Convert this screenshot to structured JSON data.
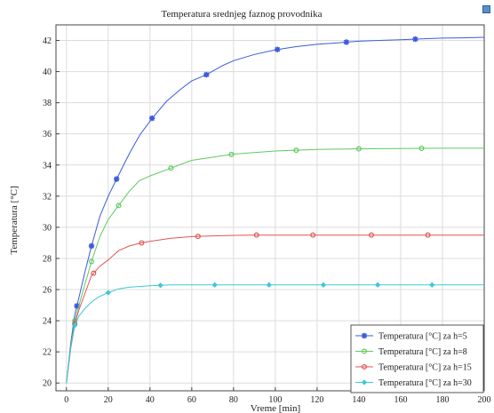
{
  "chart_data": {
    "type": "line",
    "title": "Temperatura srednjeg faznog provodnika",
    "xlabel": "Vreme [min]",
    "ylabel": "Temperatura [°C]",
    "xlim": [
      -5,
      200
    ],
    "ylim": [
      19.5,
      43
    ],
    "xticks": [
      0,
      20,
      40,
      60,
      80,
      100,
      120,
      140,
      160,
      180,
      200
    ],
    "yticks": [
      20,
      22,
      24,
      26,
      28,
      30,
      32,
      34,
      36,
      38,
      40,
      42
    ],
    "grid": true,
    "legend_position": "bottom-right",
    "series": [
      {
        "name": "Temperatura [°C] za h=5",
        "color": "#3b5bdb",
        "marker": "star",
        "x": [
          0,
          2,
          4,
          6,
          9,
          12,
          16,
          20,
          24,
          30,
          35,
          41,
          48,
          55,
          60,
          67,
          75,
          80,
          90,
          100,
          110,
          120,
          130,
          140,
          150,
          160,
          170,
          180,
          190,
          200
        ],
        "y": [
          20,
          22.5,
          24.4,
          25.5,
          27.2,
          28.8,
          30.7,
          32.0,
          33.1,
          34.7,
          35.9,
          37.0,
          38.1,
          38.9,
          39.4,
          39.8,
          40.4,
          40.7,
          41.1,
          41.4,
          41.6,
          41.75,
          41.85,
          41.95,
          42.0,
          42.05,
          42.1,
          42.15,
          42.17,
          42.2
        ],
        "marker_x": [
          5,
          12,
          24,
          41,
          67,
          101,
          134,
          167
        ]
      },
      {
        "name": "Temperatura [°C] za h=8",
        "color": "#5fc95f",
        "marker": "circle",
        "x": [
          0,
          2,
          4,
          6,
          9,
          12,
          16,
          20,
          25,
          30,
          35,
          40,
          50,
          60,
          70,
          80,
          90,
          100,
          110,
          120,
          130,
          140,
          150,
          160,
          170,
          180,
          190,
          200
        ],
        "y": [
          20,
          22.3,
          24.0,
          25.0,
          26.4,
          27.8,
          29.4,
          30.5,
          31.4,
          32.3,
          33.0,
          33.3,
          33.8,
          34.3,
          34.5,
          34.7,
          34.8,
          34.9,
          34.95,
          35.0,
          35.02,
          35.04,
          35.05,
          35.06,
          35.07,
          35.08,
          35.08,
          35.08
        ],
        "marker_x": [
          4,
          12,
          25,
          50,
          79,
          110,
          140,
          170
        ]
      },
      {
        "name": "Temperatura [°C] za h=15",
        "color": "#e05555",
        "marker": "circle",
        "x": [
          0,
          2,
          4,
          6,
          9,
          12,
          16,
          20,
          25,
          30,
          36,
          40,
          50,
          60,
          70,
          80,
          90,
          100,
          120,
          140,
          160,
          180,
          200
        ],
        "y": [
          20,
          22.2,
          23.8,
          24.7,
          25.8,
          26.9,
          27.5,
          27.9,
          28.5,
          28.8,
          29.0,
          29.1,
          29.3,
          29.4,
          29.45,
          29.48,
          29.5,
          29.5,
          29.5,
          29.5,
          29.5,
          29.5,
          29.5
        ],
        "marker_x": [
          4,
          13,
          36,
          63,
          91,
          118,
          146,
          173
        ]
      },
      {
        "name": "Temperatura [°C] za h=30",
        "color": "#3cc8d6",
        "marker": "diamond",
        "x": [
          0,
          2,
          4,
          6,
          9,
          12,
          15,
          20,
          25,
          30,
          40,
          50,
          60,
          80,
          100,
          120,
          140,
          160,
          180,
          200
        ],
        "y": [
          20,
          22.2,
          23.7,
          24.3,
          24.8,
          25.2,
          25.5,
          25.8,
          26.05,
          26.15,
          26.25,
          26.3,
          26.3,
          26.3,
          26.3,
          26.3,
          26.3,
          26.3,
          26.3,
          26.3
        ],
        "marker_x": [
          4,
          20,
          45,
          71,
          97,
          123,
          149,
          175
        ]
      }
    ]
  }
}
